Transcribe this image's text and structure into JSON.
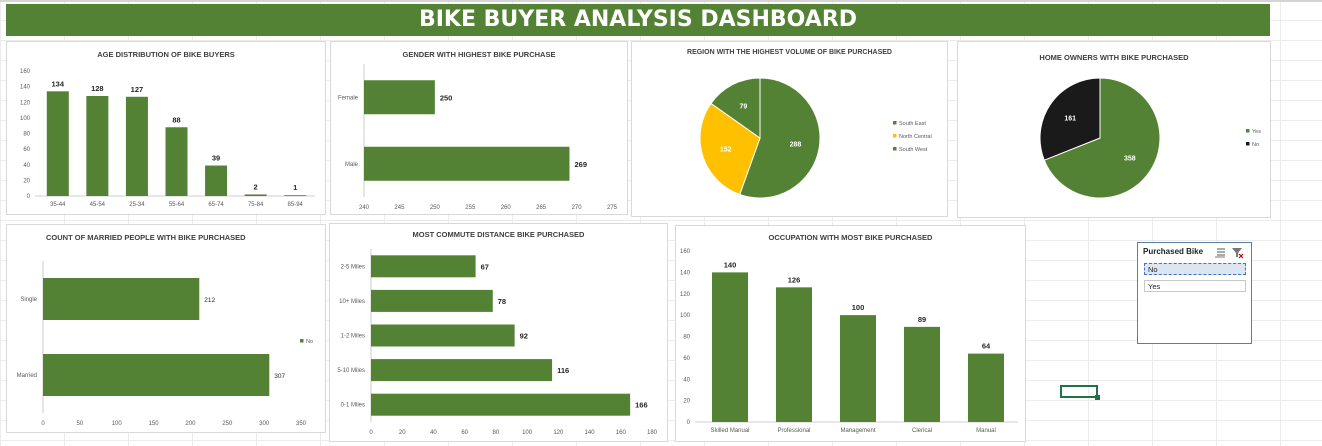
{
  "dashboard": {
    "title": "BIKE BUYER ANALYSIS DASHBOARD"
  },
  "colors": {
    "green": "#548235",
    "gold": "#ffc000",
    "black": "#1a1a1a",
    "axis": "#595959"
  },
  "chart_data": [
    {
      "id": "age",
      "type": "bar",
      "title": "AGE DISTRIBUTION OF BIKE BUYERS",
      "categories": [
        "35-44",
        "45-54",
        "25-34",
        "55-64",
        "65-74",
        "75-84",
        "85-94"
      ],
      "values": [
        134,
        128,
        127,
        88,
        39,
        2,
        1
      ],
      "ylim": [
        0,
        160
      ],
      "yticks": [
        0,
        20,
        40,
        60,
        80,
        100,
        120,
        140,
        160
      ],
      "grid": false
    },
    {
      "id": "gender",
      "type": "bar",
      "orientation": "horizontal",
      "title": "GENDER WITH HIGHEST BIKE PURCHASE",
      "categories": [
        "Female",
        "Male"
      ],
      "values": [
        250,
        269
      ],
      "xlim": [
        240,
        275
      ],
      "xticks": [
        240,
        245,
        250,
        255,
        260,
        265,
        270,
        275
      ]
    },
    {
      "id": "region",
      "type": "pie",
      "title": "REGION WITH THE HIGHEST  VOLUME OF BIKE PURCHASED",
      "slices": [
        {
          "label": "South East",
          "value": 288,
          "color": "#548235"
        },
        {
          "label": "North Central",
          "value": 152,
          "color": "#ffc000"
        },
        {
          "label": "South West",
          "value": 79,
          "color": "#548235"
        }
      ],
      "legend": "right"
    },
    {
      "id": "home",
      "type": "pie",
      "title": "HOME OWNERS WITH BIKE PURCHASED",
      "slices": [
        {
          "label": "Yes",
          "value": 358,
          "color": "#548235"
        },
        {
          "label": "No",
          "value": 161,
          "color": "#1a1a1a"
        }
      ],
      "legend": "right"
    },
    {
      "id": "married",
      "type": "bar",
      "orientation": "horizontal",
      "title": "COUNT OF MARRIED PEOPLE WITH BIKE PURCHASED",
      "categories": [
        "Single",
        "Married"
      ],
      "series": [
        {
          "name": "No",
          "values": [
            212,
            307
          ]
        }
      ],
      "xlim": [
        0,
        350
      ],
      "xticks": [
        0,
        50,
        100,
        150,
        200,
        250,
        300,
        350
      ],
      "legend": "right"
    },
    {
      "id": "commute",
      "type": "bar",
      "orientation": "horizontal",
      "title": "MOST COMMUTE DISTANCE BIKE PURCHASED",
      "categories": [
        "2-5 Miles",
        "10+ Miles",
        "1-2 Miles",
        "5-10 Miles",
        "0-1 Miles"
      ],
      "values": [
        67,
        78,
        92,
        116,
        166
      ],
      "xlim": [
        0,
        180
      ],
      "xticks": [
        0,
        20,
        40,
        60,
        80,
        100,
        120,
        140,
        160,
        180
      ]
    },
    {
      "id": "occupation",
      "type": "bar",
      "title": "OCCUPATION WITH MOST BIKE PURCHASED",
      "categories": [
        "Skilled Manual",
        "Professional",
        "Management",
        "Clerical",
        "Manual"
      ],
      "values": [
        140,
        126,
        100,
        89,
        64
      ],
      "ylim": [
        0,
        160
      ],
      "yticks": [
        0,
        20,
        40,
        60,
        80,
        100,
        120,
        140,
        160
      ]
    }
  ],
  "slicer": {
    "title": "Purchased Bike",
    "items": [
      {
        "label": "No",
        "selected": true
      },
      {
        "label": "Yes",
        "selected": false
      }
    ]
  }
}
